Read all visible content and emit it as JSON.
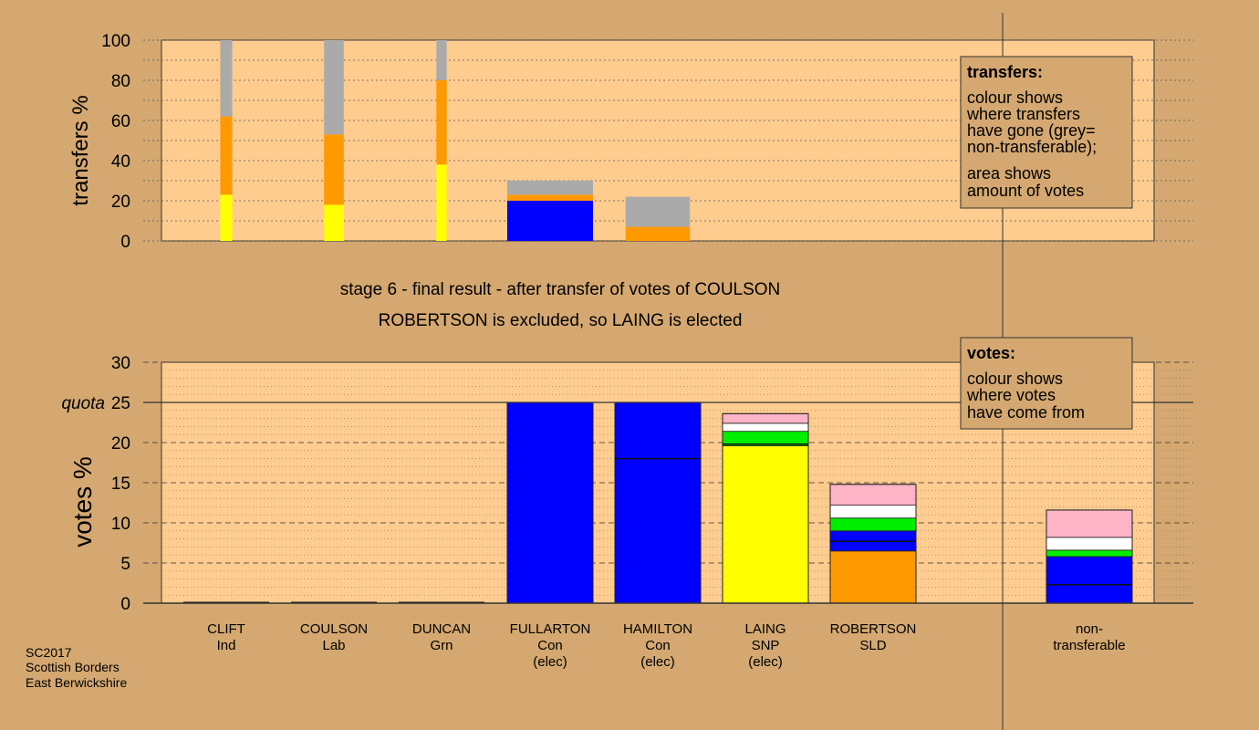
{
  "colors": {
    "background": "#d4a870",
    "plot_area": "#ffcc8f",
    "Con": "#0000ff",
    "SNP": "#ffff00",
    "SLD": "#ff9900",
    "Grn": "#00ee00",
    "Lab": "#ffffff",
    "Ind": "#ffb3c6",
    "nontransferable": "#aaaaaa"
  },
  "caption": {
    "line1": "stage 6 - final result - after transfer of votes of COULSON",
    "line2": "ROBERTSON is excluded, so LAING is elected"
  },
  "legend_transfers": {
    "title": "transfers:",
    "line1": "colour shows",
    "line2": "where transfers",
    "line3": "have gone (grey=",
    "line4": "non-transferable);",
    "line5": "area shows",
    "line6": "amount of votes"
  },
  "legend_votes": {
    "title": "votes:",
    "line1": "colour shows",
    "line2": "where votes",
    "line3": "have come from"
  },
  "footer": {
    "line1": "SC2017",
    "line2": "Scottish Borders",
    "line3": "East Berwickshire"
  },
  "quota_label": "quota",
  "chart_data": [
    {
      "type": "bar",
      "ylabel": "transfers %",
      "ylim": [
        0,
        100
      ],
      "yticks": [
        0,
        20,
        40,
        60,
        80,
        100
      ],
      "grid": true,
      "bars": [
        {
          "column": 0,
          "width_share": 0.14,
          "segments": [
            {
              "color": "SNP",
              "value": 23
            },
            {
              "color": "SLD",
              "value": 39
            },
            {
              "color": "nontransferable",
              "value": 38
            }
          ]
        },
        {
          "column": 1,
          "width_share": 0.23,
          "segments": [
            {
              "color": "SNP",
              "value": 18
            },
            {
              "color": "SLD",
              "value": 35
            },
            {
              "color": "nontransferable",
              "value": 47
            }
          ]
        },
        {
          "column": 2,
          "width_share": 0.12,
          "segments": [
            {
              "color": "SNP",
              "value": 38
            },
            {
              "color": "SLD",
              "value": 42
            },
            {
              "color": "nontransferable",
              "value": 20
            }
          ]
        },
        {
          "column": 3,
          "width_share": 1.0,
          "segments": [
            {
              "color": "Con",
              "value": 20
            },
            {
              "color": "SLD",
              "value": 3
            },
            {
              "color": "nontransferable",
              "value": 7
            }
          ]
        },
        {
          "column": 4,
          "width_share": 0.75,
          "segments": [
            {
              "color": "SLD",
              "value": 7
            },
            {
              "color": "nontransferable",
              "value": 15
            }
          ]
        }
      ]
    },
    {
      "type": "bar",
      "ylabel": "votes %",
      "ylim": [
        0,
        30
      ],
      "yticks": [
        0,
        5,
        10,
        15,
        20,
        25,
        30
      ],
      "quota": 25,
      "grid": true,
      "categories": [
        {
          "name": "CLIFT",
          "party": "Ind",
          "status": ""
        },
        {
          "name": "COULSON",
          "party": "Lab",
          "status": ""
        },
        {
          "name": "DUNCAN",
          "party": "Grn",
          "status": ""
        },
        {
          "name": "FULLARTON",
          "party": "Con",
          "status": "(elec)"
        },
        {
          "name": "HAMILTON",
          "party": "Con",
          "status": "(elec)"
        },
        {
          "name": "LAING",
          "party": "SNP",
          "status": "(elec)"
        },
        {
          "name": "ROBERTSON",
          "party": "SLD",
          "status": ""
        },
        {
          "name": "",
          "party": "",
          "status": ""
        },
        {
          "name": "non-",
          "party": "transferable",
          "status": ""
        }
      ],
      "bars": [
        {
          "column": 0,
          "segments": [],
          "dividers": []
        },
        {
          "column": 1,
          "segments": [],
          "dividers": []
        },
        {
          "column": 2,
          "segments": [],
          "dividers": []
        },
        {
          "column": 3,
          "segments": [
            {
              "color": "Con",
              "value": 25
            }
          ],
          "dividers": []
        },
        {
          "column": 4,
          "segments": [
            {
              "color": "Con",
              "value": 25
            }
          ],
          "dividers": [
            18
          ]
        },
        {
          "column": 5,
          "segments": [
            {
              "color": "SNP",
              "value": 19.6
            },
            {
              "color": "Grn",
              "value": 1.8
            },
            {
              "color": "Lab",
              "value": 1
            },
            {
              "color": "Ind",
              "value": 1.2
            }
          ],
          "dividers": [
            19.8
          ]
        },
        {
          "column": 6,
          "segments": [
            {
              "color": "SLD",
              "value": 6.5
            },
            {
              "color": "Con",
              "value": 2.5
            },
            {
              "color": "Grn",
              "value": 1.6
            },
            {
              "color": "Lab",
              "value": 1.6
            },
            {
              "color": "Ind",
              "value": 2.6
            }
          ],
          "dividers": [
            7.7
          ]
        },
        {
          "column": 8,
          "segments": [
            {
              "color": "Con",
              "value": 5.8
            },
            {
              "color": "Grn",
              "value": 0.8
            },
            {
              "color": "Lab",
              "value": 1.6
            },
            {
              "color": "Ind",
              "value": 3.4
            }
          ],
          "dividers": [
            2.3
          ]
        }
      ]
    }
  ]
}
